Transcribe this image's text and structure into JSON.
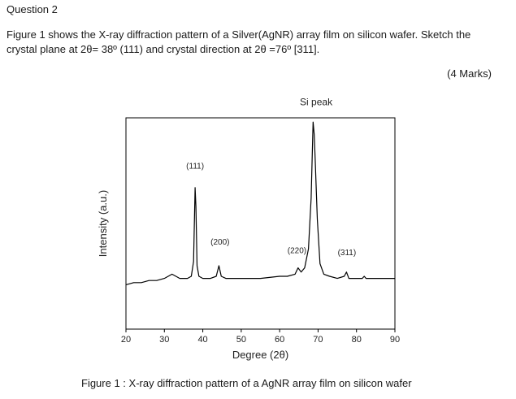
{
  "question": {
    "title": "Question 2",
    "body_line1": "Figure 1 shows the X-ray diffraction pattern of a Silver(AgNR) array film on silicon wafer. Sketch the",
    "body_line2": "crystal plane at 2θ= 38º (111) and crystal direction at 2θ =76º [311].",
    "marks": "(4 Marks)"
  },
  "figure": {
    "caption": "Figure 1 : X-ray diffraction pattern of a AgNR array film on silicon wafer"
  },
  "chart_data": {
    "type": "line",
    "title": "",
    "xlabel": "Degree (2θ)",
    "ylabel": "Intensity (a.u.)",
    "xlim": [
      20,
      90
    ],
    "ylim": [
      0,
      100
    ],
    "xticks": [
      20,
      30,
      40,
      50,
      60,
      70,
      80,
      90
    ],
    "grid": false,
    "series_color": "#000000",
    "x": [
      20,
      22,
      24,
      26,
      28,
      30,
      31,
      32,
      33,
      34,
      36,
      37,
      37.6,
      38.0,
      38.2,
      38.5,
      39,
      40,
      42,
      43.5,
      44.2,
      44.8,
      46,
      50,
      55,
      60,
      62,
      64,
      64.8,
      65.6,
      66.5,
      67.5,
      68.2,
      68.7,
      69.0,
      69.3,
      69.8,
      70.5,
      71.5,
      73,
      75,
      76.8,
      77.4,
      78,
      80,
      81.5,
      82,
      82.5,
      85,
      88,
      90
    ],
    "y": [
      21,
      22,
      22,
      23,
      23,
      24,
      25,
      26,
      25,
      24,
      24,
      25,
      32,
      67,
      58,
      30,
      25,
      24,
      24,
      25,
      30,
      25,
      24,
      24,
      24,
      25,
      25,
      26,
      29,
      27,
      29,
      38,
      62,
      98,
      92,
      78,
      52,
      31,
      26,
      25,
      24,
      25,
      27,
      24,
      24,
      24,
      25,
      24,
      24,
      24,
      24
    ],
    "annotations": [
      {
        "label": "(111)",
        "x": 38.0,
        "y": 76
      },
      {
        "label": "(200)",
        "x": 44.5,
        "y": 40
      },
      {
        "label": "(220)",
        "x": 64.5,
        "y": 36
      },
      {
        "label": "Si peak",
        "x": 69.5,
        "y": 106
      },
      {
        "label": "(311)",
        "x": 77.5,
        "y": 35
      }
    ]
  }
}
